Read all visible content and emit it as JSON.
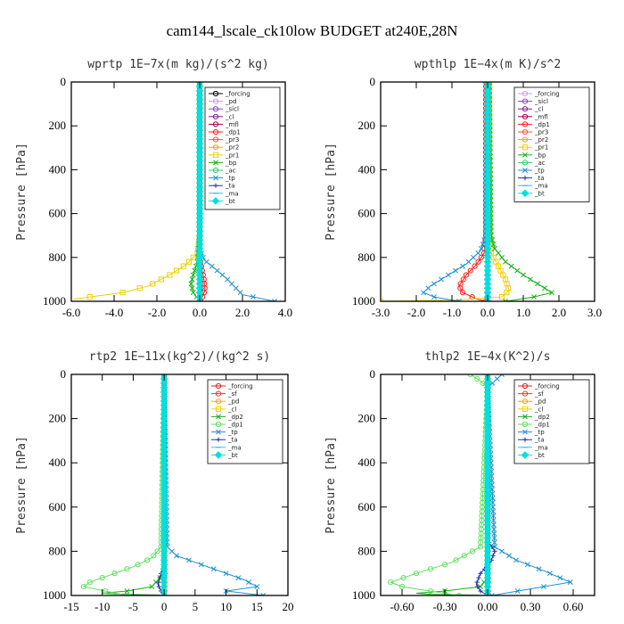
{
  "figure": {
    "title": "cam144_lscale_ck10low  BUDGET at240E,28N"
  },
  "chart_data": [
    {
      "type": "line",
      "title": "wprtp  1E−7x(m kg)/(s^2 kg)",
      "ylabel": "Pressure [hPa]",
      "xlim": [
        -6.0,
        4.0
      ],
      "xticks": [
        "-6.0",
        "-4.0",
        "-2.0",
        "0.0",
        "2.0",
        "4.0"
      ],
      "xtick_values": [
        -6,
        -4,
        -2,
        0,
        2,
        4
      ],
      "ylim": [
        1000,
        0
      ],
      "yticks": [
        "0",
        "200",
        "400",
        "600",
        "800",
        "1000"
      ],
      "ytick_values": [
        0,
        200,
        400,
        600,
        800,
        1000
      ],
      "legend_position": "top-right",
      "series": [
        {
          "name": "_forcing",
          "color": "#000000",
          "marker": "circle",
          "x": [
            0,
            0,
            0,
            0,
            0,
            0,
            0,
            0,
            0,
            0,
            0
          ],
          "y": [
            0,
            100,
            200,
            300,
            400,
            500,
            600,
            700,
            800,
            900,
            1000
          ]
        },
        {
          "name": "_pd",
          "color": "#c8a0e0",
          "marker": "circle",
          "x": [
            0,
            0,
            0
          ],
          "y": [
            0,
            500,
            1000
          ]
        },
        {
          "name": "_sicl",
          "color": "#9040c0",
          "marker": "circle",
          "x": [
            0,
            0,
            0
          ],
          "y": [
            0,
            500,
            1000
          ]
        },
        {
          "name": "_cl",
          "color": "#8a1a8a",
          "marker": "circle",
          "x": [
            0,
            0,
            0
          ],
          "y": [
            0,
            500,
            1000
          ]
        },
        {
          "name": "_mfl",
          "color": "#a00050",
          "marker": "circle",
          "x": [
            0,
            0,
            0
          ],
          "y": [
            0,
            500,
            1000
          ]
        },
        {
          "name": "_dp1",
          "color": "#ff1e1e",
          "marker": "circle",
          "x": [
            0,
            0,
            0,
            0.1,
            0.2,
            0.25,
            0.05
          ],
          "y": [
            0,
            600,
            800,
            850,
            900,
            950,
            1000
          ]
        },
        {
          "name": "_pr3",
          "color": "#ff5030",
          "marker": "circle",
          "x": [
            0,
            0,
            0
          ],
          "y": [
            0,
            500,
            1000
          ]
        },
        {
          "name": "_pr2",
          "color": "#ff9a20",
          "marker": "circle",
          "x": [
            0,
            0,
            0
          ],
          "y": [
            0,
            500,
            1000
          ]
        },
        {
          "name": "_pr1",
          "color": "#f0d000",
          "marker": "square",
          "x": [
            0,
            0,
            -0.1,
            -0.6,
            -1.4,
            -2.4,
            -3.6,
            -5.9
          ],
          "y": [
            0,
            700,
            780,
            830,
            880,
            930,
            960,
            990
          ]
        },
        {
          "name": "_bp",
          "color": "#18b018",
          "marker": "x",
          "x": [
            0,
            0,
            -0.1,
            -0.3,
            -0.4,
            -0.3,
            0
          ],
          "y": [
            0,
            700,
            820,
            880,
            920,
            960,
            1000
          ]
        },
        {
          "name": "_ac",
          "color": "#30d060",
          "marker": "circle",
          "x": [
            0,
            0,
            0
          ],
          "y": [
            0,
            500,
            1000
          ]
        },
        {
          "name": "_tp",
          "color": "#2090d0",
          "marker": "x",
          "x": [
            0,
            0,
            0.2,
            0.7,
            1.3,
            1.8,
            2.0,
            3.5
          ],
          "y": [
            0,
            760,
            810,
            850,
            900,
            950,
            970,
            1000
          ]
        },
        {
          "name": "_ta",
          "color": "#2030a0",
          "marker": "plus",
          "x": [
            0,
            0,
            0.05,
            0.1,
            0
          ],
          "y": [
            0,
            760,
            850,
            950,
            1000
          ]
        },
        {
          "name": "_ma",
          "color": "#30c0e0",
          "marker": "dash",
          "x": [
            0,
            0,
            0
          ],
          "y": [
            0,
            500,
            1000
          ]
        },
        {
          "name": "_bt",
          "color": "#00e0e0",
          "marker": "diamond",
          "x": [
            0,
            0,
            0
          ],
          "y": [
            0,
            500,
            1000
          ]
        }
      ]
    },
    {
      "type": "line",
      "title": "wpthlp  1E−4x(m K)/s^2",
      "ylabel": "Pressure [hPa]",
      "xlim": [
        -3.0,
        3.0
      ],
      "xticks": [
        "-3.0",
        "-2.0",
        "-1.0",
        "0.0",
        "1.0",
        "2.0",
        "3.0"
      ],
      "xtick_values": [
        -3,
        -2,
        -1,
        0,
        1,
        2,
        3
      ],
      "ylim": [
        1000,
        0
      ],
      "yticks": [
        "0",
        "200",
        "400",
        "600",
        "800",
        "1000"
      ],
      "ytick_values": [
        0,
        200,
        400,
        600,
        800,
        1000
      ],
      "legend_position": "top-right",
      "series": [
        {
          "name": "_forcing",
          "color": "#c8a0e0",
          "marker": "circle",
          "x": [
            0,
            0,
            0
          ],
          "y": [
            0,
            500,
            1000
          ]
        },
        {
          "name": "_sicl",
          "color": "#9040c0",
          "marker": "circle",
          "x": [
            0,
            0,
            0
          ],
          "y": [
            0,
            500,
            1000
          ]
        },
        {
          "name": "_cl",
          "color": "#8a1a8a",
          "marker": "circle",
          "x": [
            0,
            0,
            0
          ],
          "y": [
            0,
            500,
            1000
          ]
        },
        {
          "name": "_mfl",
          "color": "#a00050",
          "marker": "circle",
          "x": [
            0,
            0,
            0
          ],
          "y": [
            0,
            500,
            1000
          ]
        },
        {
          "name": "_dp1",
          "color": "#ff1e1e",
          "marker": "circle",
          "x": [
            -0.05,
            -0.05,
            -0.1,
            -0.3,
            -0.6,
            -0.8,
            -0.7,
            -0.3,
            -0.05
          ],
          "y": [
            0,
            700,
            780,
            830,
            880,
            930,
            960,
            990,
            1000
          ]
        },
        {
          "name": "_pr3",
          "color": "#ff5030",
          "marker": "circle",
          "x": [
            0,
            0,
            0
          ],
          "y": [
            0,
            500,
            1000
          ]
        },
        {
          "name": "_pr2",
          "color": "#ff9a20",
          "marker": "circle",
          "x": [
            0,
            0,
            0
          ],
          "y": [
            0,
            500,
            1000
          ]
        },
        {
          "name": "_pr1",
          "color": "#f0d000",
          "marker": "square",
          "x": [
            0.05,
            0.05,
            0.1,
            0.3,
            0.5,
            0.6,
            0.4,
            -1.0,
            -3.0
          ],
          "y": [
            0,
            700,
            780,
            840,
            900,
            950,
            980,
            995,
            1000
          ]
        },
        {
          "name": "_bp",
          "color": "#18b018",
          "marker": "x",
          "x": [
            0.05,
            0.1,
            0.2,
            0.5,
            1.0,
            1.4,
            1.7,
            1.8,
            1.3,
            0.5
          ],
          "y": [
            0,
            700,
            760,
            820,
            880,
            920,
            950,
            960,
            980,
            1000
          ]
        },
        {
          "name": "_ac",
          "color": "#30d060",
          "marker": "circle",
          "x": [
            0,
            0,
            0
          ],
          "y": [
            0,
            500,
            1000
          ]
        },
        {
          "name": "_tp",
          "color": "#2090d0",
          "marker": "x",
          "x": [
            0,
            -0.05,
            -0.2,
            -0.6,
            -1.1,
            -1.6,
            -1.8,
            -1.5,
            -0.8
          ],
          "y": [
            0,
            700,
            770,
            830,
            880,
            930,
            960,
            980,
            1000
          ]
        },
        {
          "name": "_ta",
          "color": "#2030a0",
          "marker": "plus",
          "x": [
            0,
            0,
            0
          ],
          "y": [
            0,
            500,
            1000
          ]
        },
        {
          "name": "_ma",
          "color": "#30c0e0",
          "marker": "dash",
          "x": [
            0,
            0,
            0
          ],
          "y": [
            0,
            500,
            1000
          ]
        },
        {
          "name": "_bt",
          "color": "#00e0e0",
          "marker": "diamond",
          "x": [
            0,
            0,
            0
          ],
          "y": [
            0,
            500,
            1000
          ]
        }
      ]
    },
    {
      "type": "line",
      "title": "rtp2  1E−11x(kg^2)/(kg^2 s)",
      "ylabel": "Pressure [hPa]",
      "xlim": [
        -15,
        20
      ],
      "xticks": [
        "-15",
        "-10",
        "-5",
        "0",
        "5",
        "10",
        "15",
        "20"
      ],
      "xtick_values": [
        -15,
        -10,
        -5,
        0,
        5,
        10,
        15,
        20
      ],
      "ylim": [
        1000,
        0
      ],
      "yticks": [
        "0",
        "200",
        "400",
        "600",
        "800",
        "1000"
      ],
      "ytick_values": [
        0,
        200,
        400,
        600,
        800,
        1000
      ],
      "legend_position": "top-right",
      "series": [
        {
          "name": "_forcing",
          "color": "#e02020",
          "marker": "circle",
          "x": [
            0,
            0,
            0,
            0,
            0,
            0,
            0,
            0,
            0,
            0,
            0
          ],
          "y": [
            0,
            100,
            200,
            300,
            400,
            500,
            600,
            700,
            800,
            900,
            1000
          ]
        },
        {
          "name": "_sf",
          "color": "#ff3030",
          "marker": "circle",
          "x": [
            0,
            0,
            0
          ],
          "y": [
            0,
            500,
            1000
          ]
        },
        {
          "name": "_pd",
          "color": "#ffa020",
          "marker": "circle",
          "x": [
            0,
            0,
            0
          ],
          "y": [
            0,
            500,
            1000
          ]
        },
        {
          "name": "_cl",
          "color": "#f0d000",
          "marker": "square",
          "x": [
            0,
            0,
            0
          ],
          "y": [
            0,
            500,
            1000
          ]
        },
        {
          "name": "_dp2",
          "color": "#18b018",
          "marker": "x",
          "x": [
            0,
            0,
            -2,
            -6,
            -10,
            -6,
            -1,
            0
          ],
          "y": [
            0,
            900,
            960,
            980,
            990,
            995,
            998,
            1000
          ]
        },
        {
          "name": "_dp1",
          "color": "#60e060",
          "marker": "circle",
          "x": [
            0,
            -0.5,
            -2,
            -5,
            -9,
            -12,
            -13,
            -6
          ],
          "y": [
            0,
            780,
            830,
            870,
            910,
            940,
            960,
            1000
          ]
        },
        {
          "name": "_tp",
          "color": "#2090d0",
          "marker": "x",
          "x": [
            0,
            0.5,
            2,
            5,
            9,
            13,
            15,
            10,
            16
          ],
          "y": [
            0,
            780,
            820,
            850,
            890,
            930,
            960,
            980,
            1000
          ]
        },
        {
          "name": "_ta",
          "color": "#2030a0",
          "marker": "plus",
          "x": [
            0,
            0,
            -0.5,
            -1,
            -0.5,
            0
          ],
          "y": [
            0,
            860,
            900,
            950,
            980,
            1000
          ]
        },
        {
          "name": "_ma",
          "color": "#30c0e0",
          "marker": "dash",
          "x": [
            0,
            0,
            0
          ],
          "y": [
            0,
            500,
            1000
          ]
        },
        {
          "name": "_bt",
          "color": "#00e0e0",
          "marker": "diamond",
          "x": [
            0,
            0,
            0
          ],
          "y": [
            0,
            500,
            1000
          ]
        }
      ]
    },
    {
      "type": "line",
      "title": "thlp2  1E−4x(K^2)/s",
      "ylabel": "Pressure [hPa]",
      "xlim": [
        -0.75,
        0.75
      ],
      "xticks": [
        "-0.60",
        "-0.30",
        "0.00",
        "0.30",
        "0.60"
      ],
      "xtick_values": [
        -0.6,
        -0.3,
        0,
        0.3,
        0.6
      ],
      "ylim": [
        1000,
        0
      ],
      "yticks": [
        "0",
        "200",
        "400",
        "600",
        "800",
        "1000"
      ],
      "ytick_values": [
        0,
        200,
        400,
        600,
        800,
        1000
      ],
      "legend_position": "top-right",
      "series": [
        {
          "name": "_forcing",
          "color": "#e02020",
          "marker": "circle",
          "x": [
            0,
            0,
            0,
            0,
            0,
            0,
            0,
            0,
            0,
            0,
            0
          ],
          "y": [
            0,
            100,
            200,
            300,
            400,
            500,
            600,
            700,
            800,
            900,
            1000
          ]
        },
        {
          "name": "_sf",
          "color": "#ff3030",
          "marker": "circle",
          "x": [
            0,
            0,
            0
          ],
          "y": [
            0,
            500,
            1000
          ]
        },
        {
          "name": "_pd",
          "color": "#ffa020",
          "marker": "circle",
          "x": [
            0,
            0,
            0
          ],
          "y": [
            0,
            500,
            1000
          ]
        },
        {
          "name": "_cl",
          "color": "#f0d000",
          "marker": "square",
          "x": [
            0,
            0,
            0
          ],
          "y": [
            0,
            500,
            1000
          ]
        },
        {
          "name": "_dp2",
          "color": "#18b018",
          "marker": "x",
          "x": [
            0,
            0,
            -0.05,
            -0.3,
            -0.5,
            -0.4,
            -0.1,
            0
          ],
          "y": [
            0,
            920,
            960,
            980,
            990,
            995,
            998,
            1000
          ]
        },
        {
          "name": "_dp1",
          "color": "#60e060",
          "marker": "circle",
          "x": [
            -0.12,
            -0.05,
            0,
            -0.05,
            -0.25,
            -0.5,
            -0.68,
            -0.6,
            -0.2
          ],
          "y": [
            0,
            30,
            60,
            780,
            850,
            900,
            940,
            960,
            1000
          ]
        },
        {
          "name": "_tp",
          "color": "#2090d0",
          "marker": "x",
          "x": [
            0.1,
            0.05,
            0,
            0.05,
            0.2,
            0.4,
            0.58,
            0.3,
            0.03
          ],
          "y": [
            0,
            30,
            60,
            780,
            840,
            890,
            940,
            970,
            1000
          ]
        },
        {
          "name": "_ta",
          "color": "#2030a0",
          "marker": "plus",
          "x": [
            0,
            0,
            0.05,
            0.02,
            -0.05,
            -0.08,
            -0.05,
            0
          ],
          "y": [
            0,
            750,
            800,
            850,
            900,
            950,
            980,
            1000
          ]
        },
        {
          "name": "_ma",
          "color": "#30c0e0",
          "marker": "dash",
          "x": [
            0,
            0,
            0
          ],
          "y": [
            0,
            500,
            1000
          ]
        },
        {
          "name": "_bt",
          "color": "#00e0e0",
          "marker": "diamond",
          "x": [
            0,
            0,
            0
          ],
          "y": [
            0,
            500,
            1000
          ]
        }
      ]
    }
  ]
}
